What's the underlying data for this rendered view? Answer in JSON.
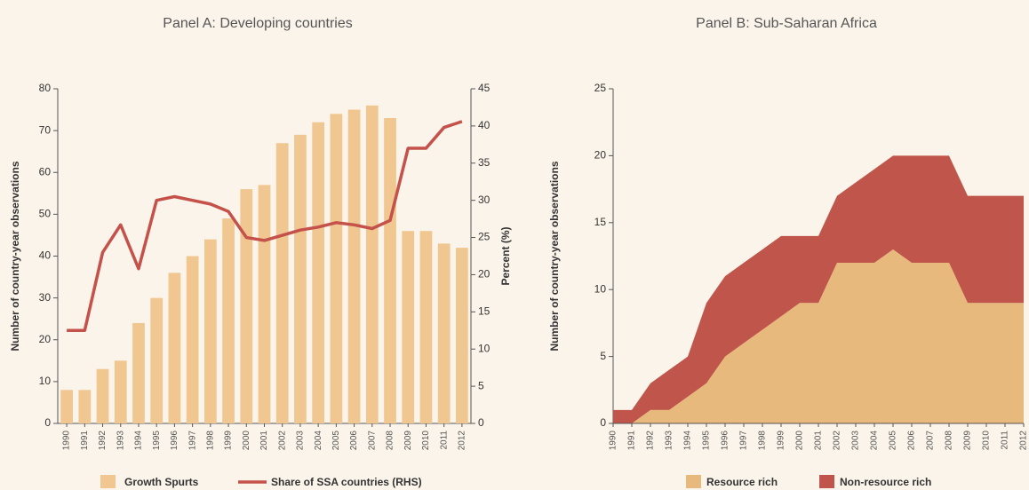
{
  "chart_data": [
    {
      "type": "combo",
      "title": "Panel A: Developing countries",
      "categories": [
        "1990",
        "1991",
        "1992",
        "1993",
        "1994",
        "1995",
        "1996",
        "1997",
        "1998",
        "1999",
        "2000",
        "2001",
        "2002",
        "2003",
        "2004",
        "2005",
        "2006",
        "2007",
        "2008",
        "2009",
        "2010",
        "2011",
        "2012"
      ],
      "y_label": "Number of country-year observations",
      "y2_label": "Percent (%)",
      "ylim": [
        0,
        80
      ],
      "yticks": [
        0,
        10,
        20,
        30,
        40,
        50,
        60,
        70,
        80
      ],
      "y2lim": [
        0,
        45
      ],
      "y2ticks": [
        0,
        5,
        10,
        15,
        20,
        25,
        30,
        35,
        40,
        45
      ],
      "series": [
        {
          "name": "Growth Spurts",
          "type": "bar",
          "color": "#f1c791",
          "values": [
            8,
            8,
            13,
            15,
            24,
            30,
            36,
            40,
            44,
            49,
            56,
            57,
            67,
            69,
            72,
            74,
            75,
            76,
            73,
            46,
            46,
            43,
            42
          ]
        },
        {
          "name": "Share of SSA countries (RHS)",
          "type": "line",
          "axis": "y2",
          "color": "#c4514a",
          "values": [
            12.5,
            12.5,
            23,
            26.7,
            20.8,
            30,
            30.5,
            30,
            29.5,
            28.5,
            25,
            24.6,
            25.3,
            26,
            26.4,
            27,
            26.7,
            26.2,
            27.3,
            37,
            37,
            39.8,
            40.6
          ]
        }
      ]
    },
    {
      "type": "area",
      "stacked": true,
      "title": "Panel B: Sub-Saharan Africa",
      "categories": [
        "1990",
        "1991",
        "1992",
        "1993",
        "1994",
        "1995",
        "1996",
        "1997",
        "1998",
        "1999",
        "2000",
        "2001",
        "2002",
        "2003",
        "2004",
        "2005",
        "2006",
        "2007",
        "2008",
        "2009",
        "2010",
        "2011",
        "2012"
      ],
      "y_label": "Number of country-year observations",
      "ylim": [
        0,
        25
      ],
      "yticks": [
        0,
        5,
        10,
        15,
        20,
        25
      ],
      "series": [
        {
          "name": "Resource rich",
          "color": "#e8b97c",
          "values": [
            0,
            0,
            1,
            1,
            2,
            3,
            5,
            6,
            7,
            8,
            9,
            9,
            12,
            12,
            12,
            13,
            12,
            12,
            12,
            9,
            9,
            9,
            9
          ]
        },
        {
          "name": "Non-resource rich",
          "color": "#c0564b",
          "values": [
            1,
            1,
            2,
            3,
            3,
            6,
            6,
            6,
            6,
            6,
            5,
            5,
            5,
            6,
            7,
            7,
            8,
            8,
            8,
            8,
            8,
            8,
            8
          ]
        }
      ]
    }
  ]
}
